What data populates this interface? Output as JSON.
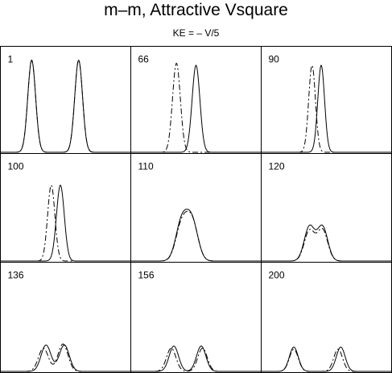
{
  "title": "m–m,  Attractive Vsquare",
  "subtitle": "KE = – V/5",
  "chart_data": {
    "type": "line",
    "layout": "3x3 small multiples",
    "grid": false,
    "x_axis": "none",
    "y_axis": "none",
    "legend": "none",
    "styles": {
      "solid": "#000000",
      "dashed": "#000000"
    },
    "panels": [
      {
        "label": "1",
        "solid": [
          {
            "center": 0.24,
            "width": 0.03,
            "height": 0.9
          },
          {
            "center": 0.6,
            "width": 0.03,
            "height": 0.9
          }
        ],
        "dashed": [
          {
            "center": 0.24,
            "width": 0.03,
            "height": 0.9
          },
          {
            "center": 0.6,
            "width": 0.03,
            "height": 0.9
          }
        ]
      },
      {
        "label": "66",
        "solid": [
          {
            "center": 0.5,
            "width": 0.03,
            "height": 0.85
          }
        ],
        "dashed": [
          {
            "center": 0.35,
            "width": 0.03,
            "height": 0.87
          }
        ]
      },
      {
        "label": "90",
        "solid": [
          {
            "center": 0.46,
            "width": 0.026,
            "height": 0.85
          }
        ],
        "dashed": [
          {
            "center": 0.39,
            "width": 0.026,
            "height": 0.85
          }
        ]
      },
      {
        "label": "100",
        "solid": [
          {
            "center": 0.46,
            "width": 0.03,
            "height": 0.73
          }
        ],
        "dashed": [
          {
            "center": 0.39,
            "width": 0.028,
            "height": 0.73
          }
        ]
      },
      {
        "label": "110",
        "solid": [
          {
            "center": 0.39,
            "width": 0.045,
            "height": 0.37
          },
          {
            "center": 0.47,
            "width": 0.045,
            "height": 0.37
          }
        ],
        "dashed": [
          {
            "center": 0.39,
            "width": 0.045,
            "height": 0.34
          },
          {
            "center": 0.47,
            "width": 0.045,
            "height": 0.37
          }
        ]
      },
      {
        "label": "120",
        "solid": [
          {
            "center": 0.37,
            "width": 0.04,
            "height": 0.33
          },
          {
            "center": 0.47,
            "width": 0.04,
            "height": 0.33
          }
        ],
        "dashed": [
          {
            "center": 0.37,
            "width": 0.04,
            "height": 0.29
          },
          {
            "center": 0.47,
            "width": 0.04,
            "height": 0.3
          }
        ]
      },
      {
        "label": "136",
        "solid": [
          {
            "center": 0.35,
            "width": 0.038,
            "height": 0.25
          },
          {
            "center": 0.49,
            "width": 0.038,
            "height": 0.25
          }
        ],
        "dashed": [
          {
            "center": 0.33,
            "width": 0.038,
            "height": 0.22
          },
          {
            "center": 0.48,
            "width": 0.038,
            "height": 0.26
          }
        ]
      },
      {
        "label": "156",
        "solid": [
          {
            "center": 0.33,
            "width": 0.036,
            "height": 0.24
          },
          {
            "center": 0.54,
            "width": 0.036,
            "height": 0.24
          }
        ],
        "dashed": [
          {
            "center": 0.31,
            "width": 0.036,
            "height": 0.22
          },
          {
            "center": 0.55,
            "width": 0.036,
            "height": 0.22
          }
        ]
      },
      {
        "label": "200",
        "solid": [
          {
            "center": 0.25,
            "width": 0.034,
            "height": 0.23
          },
          {
            "center": 0.61,
            "width": 0.034,
            "height": 0.23
          }
        ],
        "dashed": [
          {
            "center": 0.25,
            "width": 0.034,
            "height": 0.21
          },
          {
            "center": 0.59,
            "width": 0.034,
            "height": 0.21
          }
        ]
      }
    ]
  }
}
